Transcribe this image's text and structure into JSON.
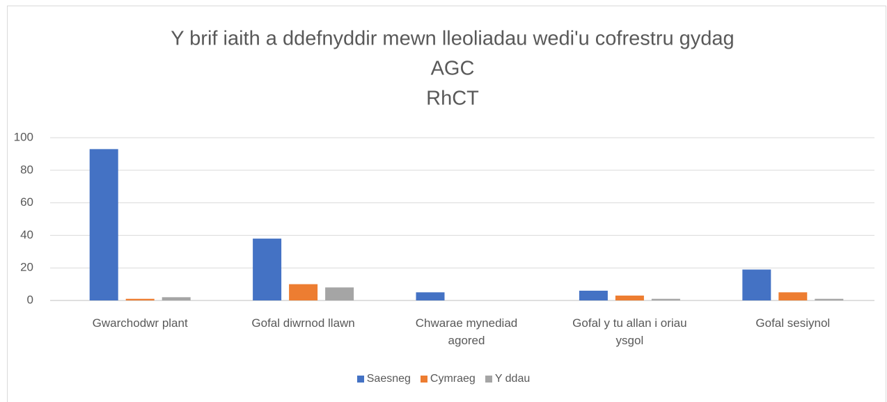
{
  "chart_data": {
    "type": "bar",
    "title": [
      "Y brif iaith a ddefnyddir mewn lleoliadau wedi'u cofrestru gydag",
      "AGC",
      "RhCT"
    ],
    "categories": [
      "Gwarchodwr plant",
      "Gofal diwrnod llawn",
      "Chwarae mynediad agored",
      "Gofal y tu allan i oriau ysgol",
      "Gofal sesiynol"
    ],
    "series": [
      {
        "name": "Saesneg",
        "color": "#4472c4",
        "values": [
          93,
          38,
          5,
          6,
          19
        ]
      },
      {
        "name": "Cymraeg",
        "color": "#ed7d31",
        "values": [
          1,
          10,
          0,
          3,
          5
        ]
      },
      {
        "name": "Y ddau",
        "color": "#a5a5a5",
        "values": [
          2,
          8,
          0,
          1,
          1
        ]
      }
    ],
    "ylim": [
      0,
      100
    ],
    "yticks": [
      0,
      20,
      40,
      60,
      80,
      100
    ],
    "grid": true,
    "legend": "bottom"
  }
}
